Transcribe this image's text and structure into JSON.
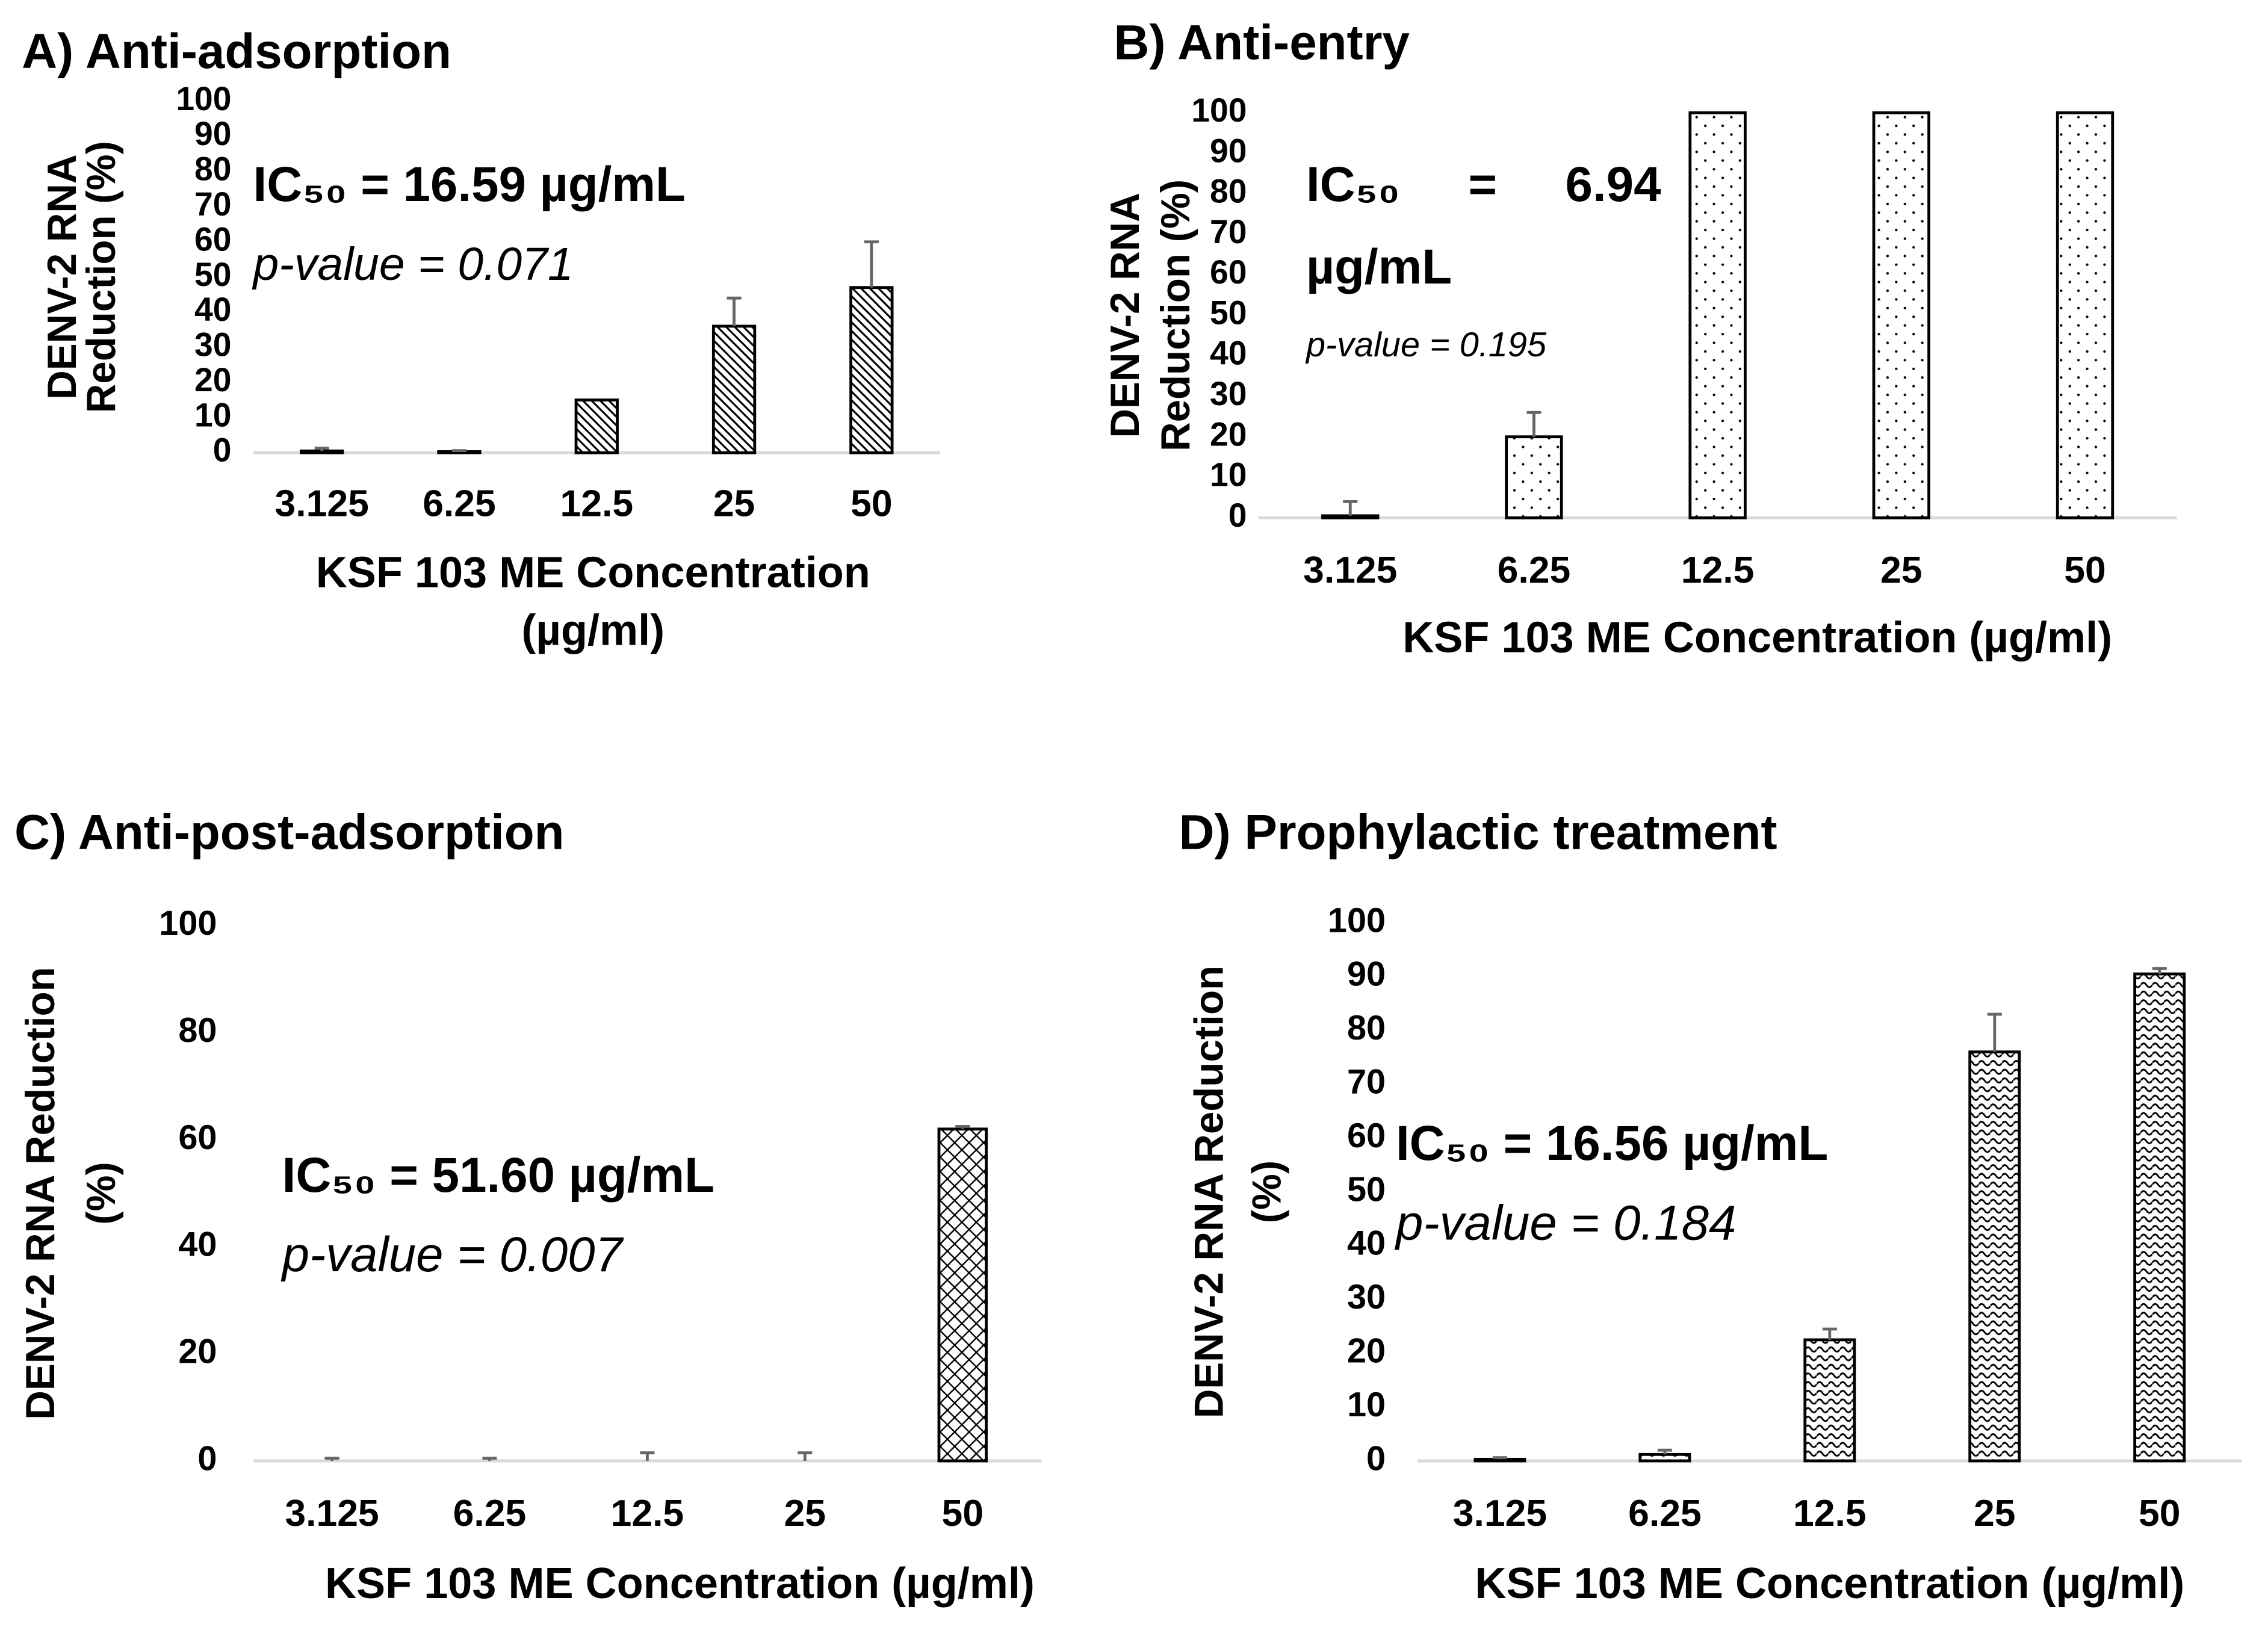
{
  "chart_data": [
    {
      "type": "bar",
      "title": "A) Anti-adsorption",
      "ylabel": [
        "DENV-2 RNA",
        "Reduction (%)"
      ],
      "xlabel": [
        "KSF 103 ME Concentration",
        "(µg/ml)"
      ],
      "categories": [
        "3.125",
        "6.25",
        "12.5",
        "25",
        "50"
      ],
      "values": [
        0.5,
        0.3,
        15,
        36,
        47
      ],
      "errors": [
        0.8,
        0.3,
        0,
        8,
        13
      ],
      "ylim": [
        0,
        100
      ],
      "yticks": [
        0,
        10,
        20,
        30,
        40,
        50,
        60,
        70,
        80,
        90,
        100
      ],
      "pattern": "hatch",
      "annotations": [
        "IC₅₀ = 16.59 µg/mL",
        "p-value = 0.071"
      ]
    },
    {
      "type": "bar",
      "title": "B) Anti-entry",
      "ylabel": [
        "DENV-2 RNA",
        "Reduction (%)"
      ],
      "xlabel": [
        "KSF 103 ME Concentration (µg/ml)"
      ],
      "categories": [
        "3.125",
        "6.25",
        "12.5",
        "25",
        "50"
      ],
      "values": [
        0.5,
        20,
        100,
        100,
        100
      ],
      "errors": [
        3.5,
        6,
        0,
        0,
        0
      ],
      "ylim": [
        0,
        100
      ],
      "yticks": [
        0,
        10,
        20,
        30,
        40,
        50,
        60,
        70,
        80,
        90,
        100
      ],
      "pattern": "dots",
      "annotations": [
        "IC₅₀     =     6.94",
        "µg/mL",
        "p-value = 0.195"
      ]
    },
    {
      "type": "bar",
      "title": "C) Anti-post-adsorption",
      "ylabel": [
        "DENV-2 RNA Reduction",
        "(%)"
      ],
      "xlabel": [
        "KSF 103 ME Concentration (µg/ml)"
      ],
      "categories": [
        "3.125",
        "6.25",
        "12.5",
        "25",
        "50"
      ],
      "values": [
        0,
        0,
        0,
        0,
        62
      ],
      "errors": [
        0.5,
        0.5,
        1.5,
        1.5,
        0.5
      ],
      "ylim": [
        0,
        100
      ],
      "yticks": [
        0,
        20,
        40,
        60,
        80,
        100
      ],
      "pattern": "crosshatch",
      "annotations": [
        "IC₅₀ = 51.60 µg/mL",
        "p-value = 0.007"
      ]
    },
    {
      "type": "bar",
      "title": "D) Prophylactic treatment",
      "ylabel": [
        "DENV-2 RNA Reduction",
        "(%)"
      ],
      "xlabel": [
        "KSF 103 ME Concentration (µg/ml)"
      ],
      "categories": [
        "3.125",
        "6.25",
        "12.5",
        "25",
        "50"
      ],
      "values": [
        0.3,
        1.2,
        22.5,
        76,
        90.5
      ],
      "errors": [
        0.3,
        0.8,
        2,
        7,
        1
      ],
      "ylim": [
        0,
        100
      ],
      "yticks": [
        0,
        10,
        20,
        30,
        40,
        50,
        60,
        70,
        80,
        90,
        100
      ],
      "pattern": "wave",
      "annotations": [
        "IC₅₀ = 16.56 µg/mL",
        "p-value = 0.184"
      ]
    }
  ]
}
